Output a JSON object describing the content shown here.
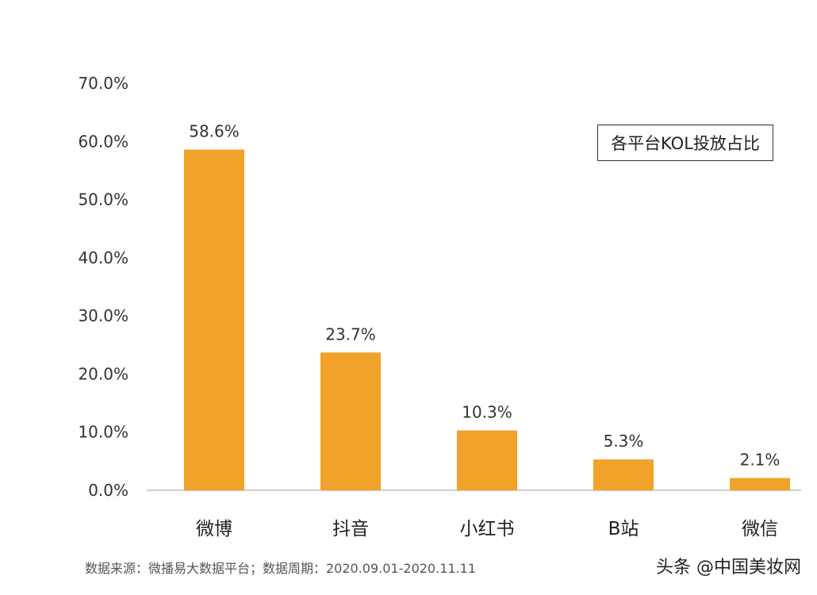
{
  "chart_data": {
    "type": "bar",
    "title": "",
    "legend_label": "各平台KOL投放占比",
    "legend_position": "top-right",
    "categories": [
      "微博",
      "抖音",
      "小红书",
      "B站",
      "微信"
    ],
    "values": [
      58.6,
      23.7,
      10.3,
      5.3,
      2.1
    ],
    "data_labels": [
      "58.6%",
      "23.7%",
      "10.3%",
      "5.3%",
      "2.1%"
    ],
    "ylim": [
      0,
      70
    ],
    "y_ticks": [
      0,
      10,
      20,
      30,
      40,
      50,
      60,
      70
    ],
    "y_tick_labels": [
      "0.0%",
      "10.0%",
      "20.0%",
      "30.0%",
      "40.0%",
      "50.0%",
      "60.0%",
      "70.0%"
    ],
    "xlabel": "",
    "ylabel": "",
    "grid": false,
    "bar_color": "#F0A22A"
  },
  "footer": {
    "source": "数据来源：微播易大数据平台；数据周期：2020.09.01-2020.11.11",
    "brand": "头条 @中国美妆网"
  }
}
